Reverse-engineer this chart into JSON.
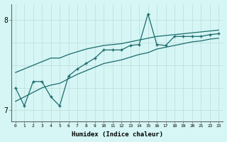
{
  "xlabel": "Humidex (Indice chaleur)",
  "background_color": "#d6f5f5",
  "line_color": "#1a6b6b",
  "xlim": [
    -0.5,
    23.5
  ],
  "ylim": [
    6.88,
    8.18
  ],
  "yticks": [
    7,
    8
  ],
  "xticks": [
    0,
    1,
    2,
    3,
    4,
    5,
    6,
    7,
    8,
    9,
    10,
    11,
    12,
    13,
    14,
    15,
    16,
    17,
    18,
    19,
    20,
    21,
    22,
    23
  ],
  "x": [
    0,
    1,
    2,
    3,
    4,
    5,
    6,
    7,
    8,
    9,
    10,
    11,
    12,
    13,
    14,
    15,
    16,
    17,
    18,
    19,
    20,
    21,
    22,
    23
  ],
  "y_jagged": [
    7.25,
    7.05,
    7.32,
    7.32,
    7.15,
    7.05,
    7.38,
    7.46,
    7.52,
    7.58,
    7.67,
    7.67,
    7.67,
    7.72,
    7.73,
    8.07,
    7.73,
    7.72,
    7.82,
    7.82,
    7.82,
    7.82,
    7.84,
    7.85
  ],
  "y_upper_linear": [
    7.42,
    7.46,
    7.5,
    7.54,
    7.58,
    7.58,
    7.62,
    7.65,
    7.68,
    7.7,
    7.72,
    7.73,
    7.74,
    7.76,
    7.78,
    7.8,
    7.82,
    7.83,
    7.84,
    7.85,
    7.86,
    7.87,
    7.88,
    7.89
  ],
  "y_lower_linear": [
    7.1,
    7.15,
    7.2,
    7.25,
    7.28,
    7.3,
    7.35,
    7.4,
    7.44,
    7.48,
    7.52,
    7.54,
    7.56,
    7.59,
    7.62,
    7.64,
    7.68,
    7.7,
    7.72,
    7.74,
    7.76,
    7.77,
    7.79,
    7.8
  ]
}
